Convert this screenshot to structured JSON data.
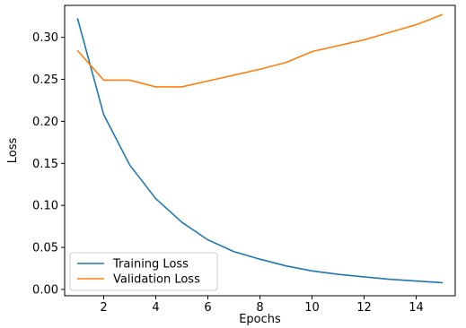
{
  "chart_data": {
    "type": "line",
    "title": "",
    "xlabel": "Epochs",
    "ylabel": "Loss",
    "xlim": [
      0.5,
      15.5
    ],
    "ylim": [
      -0.0075,
      0.338
    ],
    "xticks": [
      2,
      4,
      6,
      8,
      10,
      12,
      14
    ],
    "yticks": [
      0.0,
      0.05,
      0.1,
      0.15,
      0.2,
      0.25,
      0.3
    ],
    "grid": false,
    "legend_position": "lower-left",
    "series": [
      {
        "name": "Training Loss",
        "color": "#1f77b4",
        "x": [
          1,
          2,
          3,
          4,
          5,
          6,
          7,
          8,
          9,
          10,
          11,
          12,
          13,
          14,
          15
        ],
        "values": [
          0.322,
          0.208,
          0.148,
          0.108,
          0.08,
          0.059,
          0.045,
          0.036,
          0.028,
          0.022,
          0.018,
          0.015,
          0.012,
          0.01,
          0.008
        ]
      },
      {
        "name": "Validation Loss",
        "color": "#ff7f0e",
        "x": [
          1,
          2,
          3,
          4,
          5,
          6,
          7,
          8,
          9,
          10,
          11,
          12,
          13,
          14,
          15
        ],
        "values": [
          0.284,
          0.249,
          0.249,
          0.241,
          0.241,
          0.248,
          0.255,
          0.262,
          0.27,
          0.283,
          0.29,
          0.297,
          0.306,
          0.315,
          0.327
        ]
      }
    ]
  }
}
